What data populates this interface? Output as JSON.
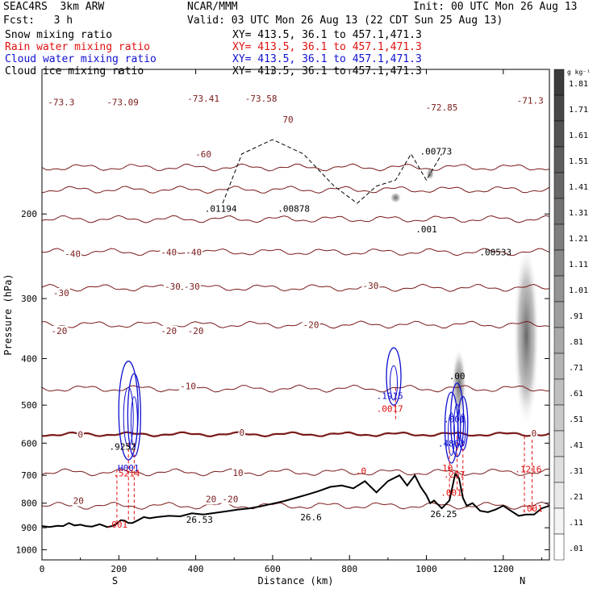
{
  "header": {
    "model": "SEAC4RS  3km ARW",
    "org": "NCAR/MMM",
    "init": "Init: 00 UTC Mon 26 Aug 13",
    "fcst": "Fcst:   3 h",
    "valid": "Valid: 03 UTC Mon 26 Aug 13 (22 CDT Sun 25 Aug 13)",
    "fields": [
      {
        "label": "Snow mixing ratio",
        "xy": "XY= 413.5, 36.1 to 457.1,471.3",
        "color": "#000000"
      },
      {
        "label": "Rain water mixing ratio",
        "xy": "XY= 413.5, 36.1 to 457.1,471.3",
        "color": "#e01010"
      },
      {
        "label": "Cloud water mixing ratio",
        "xy": "XY= 413.5, 36.1 to 457.1,471.3",
        "color": "#1010d0"
      },
      {
        "label": "Cloud ice mixing ratio",
        "xy": "XY= 413.5, 36.1 to 457.1,471.3",
        "color": "#000000"
      }
    ]
  },
  "chart_data": {
    "type": "cross-section",
    "xlabel": "Distance (km)",
    "ylabel": "Pressure (hPa)",
    "xlim": [
      0,
      1320
    ],
    "ylim": [
      1050,
      100
    ],
    "y_log": true,
    "x_ticks": [
      0,
      200,
      400,
      600,
      800,
      1000,
      1200
    ],
    "y_ticks": [
      200,
      300,
      400,
      500,
      600,
      700,
      800,
      900,
      1000
    ],
    "endpoints": {
      "left": "S",
      "right": "N"
    },
    "colorbar": {
      "unit": "g kg⁻¹",
      "levels": [
        "1.81",
        "1.71",
        "1.61",
        "1.51",
        "1.41",
        "1.31",
        "1.21",
        "1.11",
        "1.01",
        ".91",
        ".81",
        ".71",
        ".61",
        ".51",
        ".41",
        ".31",
        ".21",
        ".11",
        ".01"
      ]
    },
    "terrain": {
      "x": [
        0,
        20,
        40,
        55,
        70,
        85,
        100,
        115,
        130,
        150,
        170,
        185,
        195,
        205,
        215,
        225,
        235,
        250,
        265,
        280,
        300,
        330,
        360,
        390,
        420,
        450,
        480,
        510,
        540,
        570,
        600,
        630,
        660,
        690,
        720,
        750,
        780,
        810,
        840,
        870,
        900,
        930,
        950,
        970,
        985,
        1000,
        1010,
        1020,
        1040,
        1060,
        1075,
        1085,
        1095,
        1105,
        1120,
        1140,
        1160,
        1180,
        1200,
        1220,
        1240,
        1260,
        1280,
        1300,
        1320
      ],
      "p": [
        893,
        897,
        892,
        893,
        880,
        890,
        887,
        893,
        895,
        885,
        897,
        892,
        882,
        868,
        870,
        880,
        880,
        868,
        855,
        860,
        855,
        850,
        852,
        840,
        845,
        838,
        832,
        825,
        820,
        812,
        802,
        792,
        780,
        768,
        755,
        740,
        735,
        745,
        720,
        760,
        720,
        700,
        735,
        700,
        740,
        770,
        800,
        790,
        820,
        790,
        695,
        710,
        780,
        810,
        800,
        830,
        835,
        825,
        810,
        830,
        850,
        845,
        845,
        820,
        810
      ]
    },
    "isotherms": [
      {
        "value": -70,
        "p": 160
      },
      {
        "value": -60,
        "p": 178
      },
      {
        "value": -50,
        "p": 205
      },
      {
        "value": -40,
        "p": 240
      },
      {
        "value": -30,
        "p": 285
      },
      {
        "value": -20,
        "p": 340
      },
      {
        "value": -10,
        "p": 462
      },
      {
        "value": 0,
        "p": 575
      },
      {
        "value": 10,
        "p": 690
      },
      {
        "value": 20,
        "p": 810
      }
    ],
    "temperature_labels": [
      {
        "text": "-73.3",
        "x": 50,
        "p": 117
      },
      {
        "text": "-73.09",
        "x": 210,
        "p": 117
      },
      {
        "text": "-73.41",
        "x": 420,
        "p": 115
      },
      {
        "text": "-73.58",
        "x": 570,
        "p": 115
      },
      {
        "text": "-72.85",
        "x": 1040,
        "p": 120
      },
      {
        "text": "-71.3",
        "x": 1270,
        "p": 116
      },
      {
        "text": "70",
        "x": 640,
        "p": 127
      },
      {
        "text": "-60",
        "x": 420,
        "p": 150
      },
      {
        "text": "-40",
        "x": 80,
        "p": 242
      },
      {
        "text": "-40",
        "x": 330,
        "p": 240
      },
      {
        "text": "-40",
        "x": 395,
        "p": 240
      },
      {
        "text": "-30",
        "x": 50,
        "p": 292
      },
      {
        "text": "-30",
        "x": 340,
        "p": 283
      },
      {
        "text": "-30",
        "x": 390,
        "p": 283
      },
      {
        "text": "-30",
        "x": 855,
        "p": 282
      },
      {
        "text": "-20",
        "x": 45,
        "p": 350
      },
      {
        "text": "-20",
        "x": 330,
        "p": 350
      },
      {
        "text": "-20",
        "x": 400,
        "p": 350
      },
      {
        "text": "-20",
        "x": 700,
        "p": 340
      },
      {
        "text": "-10",
        "x": 380,
        "p": 456
      },
      {
        "text": "0",
        "x": 100,
        "p": 575
      },
      {
        "text": "0",
        "x": 520,
        "p": 570
      },
      {
        "text": "0",
        "x": 1280,
        "p": 572
      },
      {
        "text": "10",
        "x": 510,
        "p": 692
      },
      {
        "text": "20",
        "x": 95,
        "p": 790
      },
      {
        "text": "20",
        "x": 440,
        "p": 784
      },
      {
        "text": "-20",
        "x": 490,
        "p": 784
      }
    ],
    "extrema_labels": [
      {
        "text": ".01194",
        "x": 465,
        "p": 195,
        "color": "#000000"
      },
      {
        "text": ".00878",
        "x": 655,
        "p": 195,
        "color": "#000000"
      },
      {
        "text": ".00773",
        "x": 1025,
        "p": 148,
        "color": "#000000"
      },
      {
        "text": ".001",
        "x": 1000,
        "p": 215,
        "color": "#000000"
      },
      {
        "text": ".00533",
        "x": 1180,
        "p": 240,
        "color": "#000000"
      },
      {
        "text": ".00",
        "x": 1080,
        "p": 435,
        "color": "#000000"
      },
      {
        "text": ".1915",
        "x": 905,
        "p": 478,
        "color": "#1010d0"
      },
      {
        "text": ".0017",
        "x": 905,
        "p": 508,
        "color": "#e01010"
      },
      {
        "text": ".001",
        "x": 1073,
        "p": 535,
        "color": "#1010d0"
      },
      {
        "text": ".4863",
        "x": 1065,
        "p": 600,
        "color": "#1010d0"
      },
      {
        "text": ".9252",
        "x": 210,
        "p": 610,
        "color": "#000000"
      },
      {
        "text": "H001",
        "x": 225,
        "p": 675,
        "color": "#1010d0"
      },
      {
        "text": ".5214",
        "x": 220,
        "p": 693,
        "color": "#e01010"
      },
      {
        "text": ".257",
        "x": 1073,
        "p": 697,
        "color": "#e01010"
      },
      {
        "text": ".001",
        "x": 1065,
        "p": 760,
        "color": "#e01010"
      },
      {
        "text": ".0",
        "x": 830,
        "p": 685,
        "color": "#e01010"
      },
      {
        "text": ".1216",
        "x": 1265,
        "p": 680,
        "color": "#e01010"
      },
      {
        "text": "10",
        "x": 1055,
        "p": 675,
        "color": "#e01010"
      },
      {
        "text": ".001",
        "x": 195,
        "p": 885,
        "color": "#e01010"
      },
      {
        "text": ".001",
        "x": 1275,
        "p": 820,
        "color": "#e01010"
      },
      {
        "text": "26.53",
        "x": 410,
        "p": 865,
        "color": "#000000"
      },
      {
        "text": "26.6",
        "x": 700,
        "p": 855,
        "color": "#000000"
      },
      {
        "text": "26.25",
        "x": 1045,
        "p": 843,
        "color": "#000000"
      }
    ]
  }
}
